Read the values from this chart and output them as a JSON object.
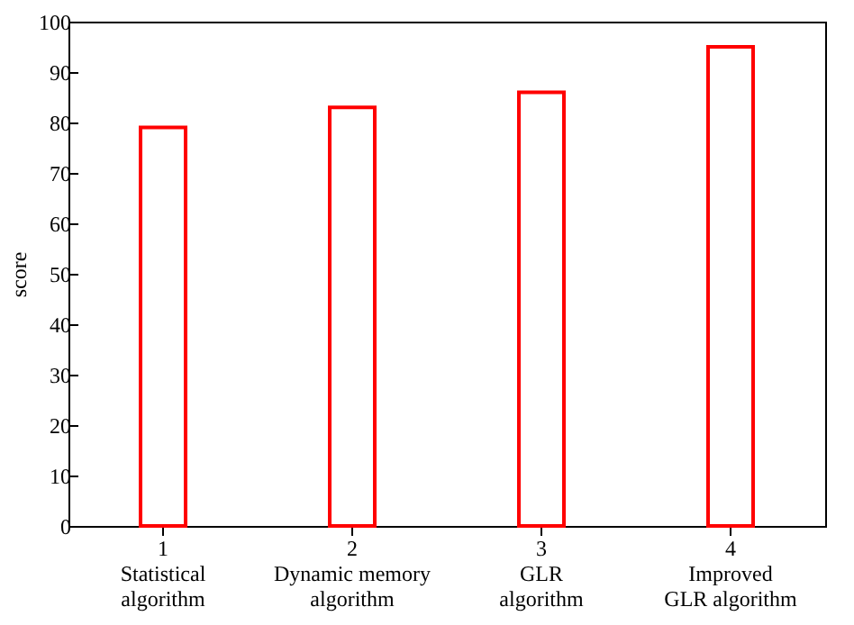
{
  "chart_data": {
    "type": "bar",
    "ylabel": "score",
    "categories": [
      "1\nStatistical\nalgorithm",
      "2\nDynamic memory\nalgorithm",
      "3\nGLR\nalgorithm",
      "4\nImproved\nGLR algorithm"
    ],
    "values": [
      79,
      83,
      86,
      95
    ],
    "color": "#ff0000",
    "ylim": [
      0,
      100
    ],
    "yticks": [
      0,
      10,
      20,
      30,
      40,
      50,
      60,
      70,
      80,
      90,
      100
    ],
    "grid": false
  }
}
